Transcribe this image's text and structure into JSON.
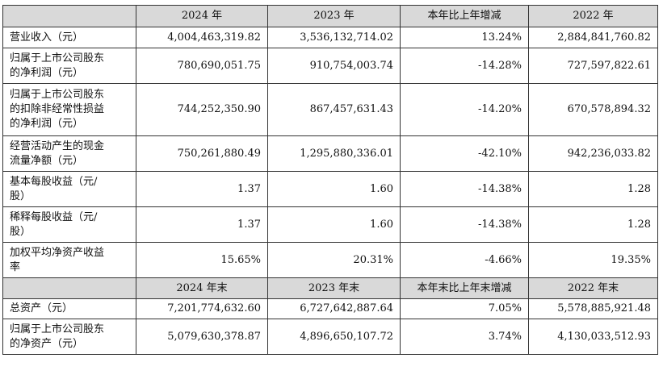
{
  "header1": [
    "",
    "2024 年",
    "2023 年",
    "本年比上年增减",
    "2022 年"
  ],
  "rows1": [
    {
      "label": "营业收入（元）",
      "v2024": "4,004,463,319.82",
      "v2023": "3,536,132,714.02",
      "change": "13.24%",
      "v2022": "2,884,841,760.82"
    },
    {
      "label": "归属于上市公司股东\n的净利润（元）",
      "v2024": "780,690,051.75",
      "v2023": "910,754,003.74",
      "change": "-14.28%",
      "v2022": "727,597,822.61"
    },
    {
      "label": "归属于上市公司股东\n的扣除非经常性损益\n的净利润（元）",
      "v2024": "744,252,350.90",
      "v2023": "867,457,631.43",
      "change": "-14.20%",
      "v2022": "670,578,894.32"
    },
    {
      "label": "经营活动产生的现金\n流量净额（元）",
      "v2024": "750,261,880.49",
      "v2023": "1,295,880,336.01",
      "change": "-42.10%",
      "v2022": "942,236,033.82"
    },
    {
      "label": "基本每股收益（元/\n股）",
      "v2024": "1.37",
      "v2023": "1.60",
      "change": "-14.38%",
      "v2022": "1.28"
    },
    {
      "label": "稀释每股收益（元/\n股）",
      "v2024": "1.37",
      "v2023": "1.60",
      "change": "-14.38%",
      "v2022": "1.28"
    },
    {
      "label": "加权平均净资产收益\n率",
      "v2024": "15.65%",
      "v2023": "20.31%",
      "change": "-4.66%",
      "v2022": "19.35%"
    }
  ],
  "header2": [
    "",
    "2024 年末",
    "2023 年末",
    "本年末比上年末增减",
    "2022 年末"
  ],
  "rows2": [
    {
      "label": "总资产（元）",
      "v2024": "7,201,774,632.60",
      "v2023": "6,727,642,887.64",
      "change": "7.05%",
      "v2022": "5,578,885,921.48"
    },
    {
      "label": "归属于上市公司股东\n的净资产（元）",
      "v2024": "5,079,630,378.87",
      "v2023": "4,896,650,107.72",
      "change": "3.74%",
      "v2022": "4,130,033,512.93"
    }
  ]
}
